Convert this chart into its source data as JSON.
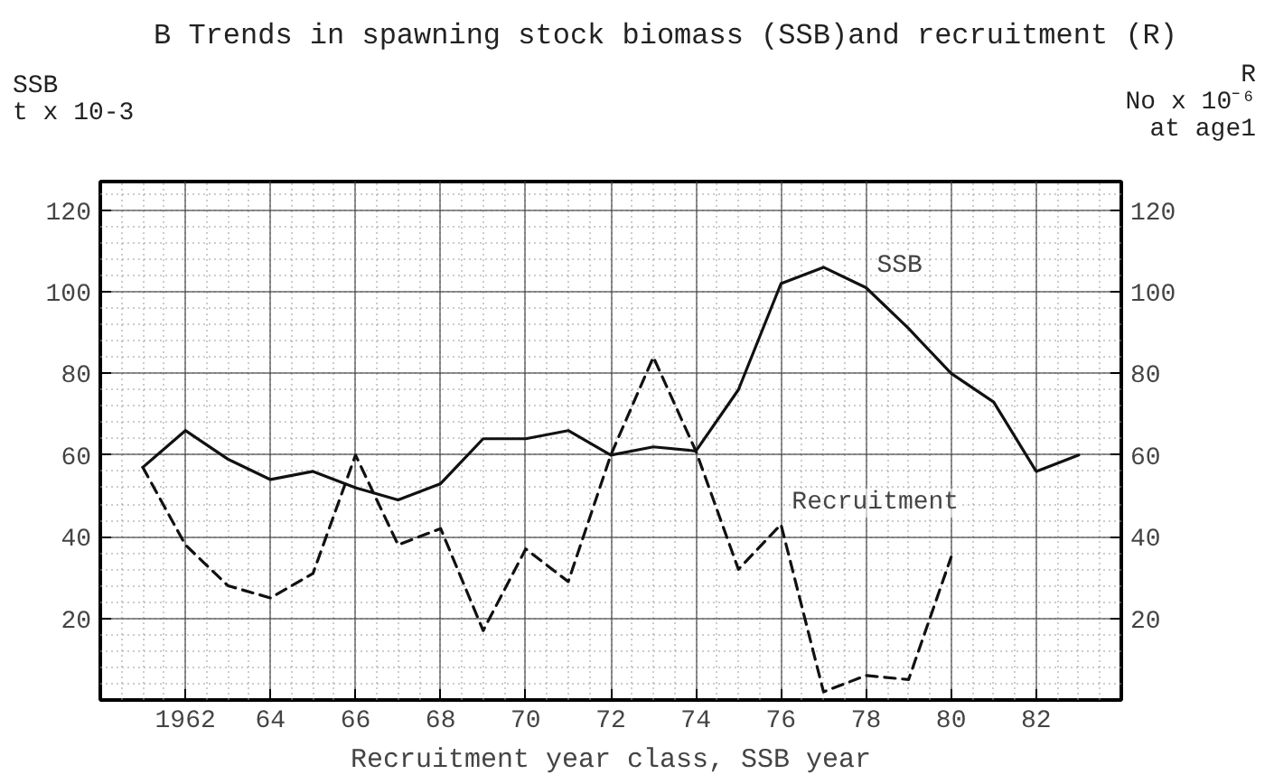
{
  "chart_data": {
    "type": "line",
    "title": "B Trends in spawning stock biomass (SSB)and recruitment (R)",
    "xlabel": "Recruitment year class, SSB year",
    "ylabel": "SSB\nt x 10-3",
    "y2label": "R\nNo x 10⁻⁶\nat age1",
    "x": [
      1961,
      1962,
      1963,
      1964,
      1965,
      1966,
      1967,
      1968,
      1969,
      1970,
      1971,
      1972,
      1973,
      1974,
      1975,
      1976,
      1977,
      1978,
      1979,
      1980,
      1981,
      1982,
      1983
    ],
    "series": [
      {
        "color": "#111111",
        "line_style": "solid",
        "values": [
          57,
          66,
          59,
          54,
          56,
          52,
          49,
          53,
          64,
          64,
          66,
          60,
          62,
          61,
          76,
          102,
          106,
          101,
          91,
          80,
          73,
          56,
          60
        ]
      },
      {
        "color": "#111111",
        "line_style": "dashed",
        "x": [
          1961,
          1962,
          1963,
          1964,
          1965,
          1966,
          1967,
          1968,
          1969,
          1970,
          1971,
          1972,
          1973,
          1974,
          1975,
          1976,
          1977,
          1978,
          1979,
          1980
        ],
        "values": [
          57,
          38,
          28,
          25,
          31,
          60,
          38,
          42,
          17,
          37,
          29,
          60,
          84,
          61,
          32,
          43,
          2,
          6,
          5,
          35
        ]
      }
    ],
    "xlim": [
      1960,
      1984
    ],
    "xticks": [
      {
        "value": 1962,
        "label": "1962"
      },
      {
        "value": 1964,
        "label": "64"
      },
      {
        "value": 1966,
        "label": "66"
      },
      {
        "value": 1968,
        "label": "68"
      },
      {
        "value": 1970,
        "label": "70"
      },
      {
        "value": 1972,
        "label": "72"
      },
      {
        "value": 1974,
        "label": "74"
      },
      {
        "value": 1976,
        "label": "76"
      },
      {
        "value": 1978,
        "label": "78"
      },
      {
        "value": 1980,
        "label": "80"
      },
      {
        "value": 1982,
        "label": "82"
      }
    ],
    "ylim": [
      0,
      127
    ],
    "yticks": [
      20,
      40,
      60,
      80,
      100,
      120
    ],
    "y2lim": [
      0,
      127
    ],
    "y2ticks": [
      20,
      40,
      60,
      80,
      100,
      120
    ],
    "annotations": [
      {
        "text": "SSB",
        "x": 1978,
        "y": 101
      },
      {
        "text": "Recruitment",
        "x": 1976,
        "y": 43
      }
    ],
    "grid": true,
    "marker": "none"
  }
}
